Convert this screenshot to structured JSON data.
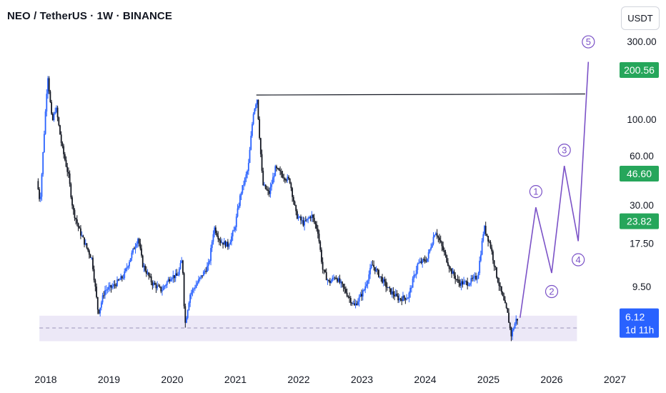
{
  "header": {
    "title": "NEO / TetherUS · 1W · BINANCE",
    "currency_button": "USDT"
  },
  "colors": {
    "up": "#2962ff",
    "down": "#131722",
    "wave": "#7b52c7",
    "zone": "#ece8f7",
    "green_badge": "#26a65b",
    "blue_badge": "#2962ff"
  },
  "chart_data": {
    "type": "candlestick",
    "interval": "1W",
    "scale": "log",
    "y_ticks": [
      "300.00",
      "100.00",
      "60.00",
      "30.00",
      "17.50",
      "9.50"
    ],
    "y_ticks_values": [
      300,
      100,
      60,
      30,
      17.5,
      9.5
    ],
    "x_ticks": [
      "2018",
      "2019",
      "2020",
      "2021",
      "2022",
      "2023",
      "2024",
      "2025",
      "2026",
      "2027"
    ],
    "price_badges": [
      {
        "label": "200.56",
        "value": 200.56,
        "kind": "green"
      },
      {
        "label": "46.60",
        "value": 46.6,
        "kind": "green"
      },
      {
        "label": "23.82",
        "value": 23.82,
        "kind": "green"
      }
    ],
    "last_price": {
      "label": "6.12",
      "value": 6.12,
      "countdown": "1d 11h"
    },
    "resistance_line": {
      "value": 141,
      "from": 2021.33,
      "to": 2026.53
    },
    "support_zone": {
      "top": 6.3,
      "bottom": 4.4,
      "mid": 5.3,
      "from": 2017.9,
      "to": 2026.4
    },
    "wave_projection": [
      {
        "label": "",
        "t": 2025.5,
        "v": 6.12
      },
      {
        "label": "1",
        "t": 2025.75,
        "v": 29
      },
      {
        "label": "2",
        "t": 2026.0,
        "v": 11.5
      },
      {
        "label": "3",
        "t": 2026.2,
        "v": 52
      },
      {
        "label": "4",
        "t": 2026.42,
        "v": 18
      },
      {
        "label": "5",
        "t": 2026.58,
        "v": 225
      }
    ],
    "price_anchors": [
      [
        2017.88,
        42
      ],
      [
        2017.93,
        31
      ],
      [
        2018.05,
        190
      ],
      [
        2018.12,
        95
      ],
      [
        2018.18,
        120
      ],
      [
        2018.27,
        70
      ],
      [
        2018.38,
        45
      ],
      [
        2018.45,
        28
      ],
      [
        2018.55,
        21
      ],
      [
        2018.65,
        17
      ],
      [
        2018.75,
        14
      ],
      [
        2018.85,
        6.5
      ],
      [
        2018.95,
        9
      ],
      [
        2019.08,
        9.5
      ],
      [
        2019.25,
        11
      ],
      [
        2019.35,
        14
      ],
      [
        2019.48,
        19
      ],
      [
        2019.55,
        13
      ],
      [
        2019.7,
        10
      ],
      [
        2019.85,
        9
      ],
      [
        2020.0,
        11
      ],
      [
        2020.1,
        11
      ],
      [
        2020.18,
        14
      ],
      [
        2020.22,
        5.5
      ],
      [
        2020.3,
        8.5
      ],
      [
        2020.45,
        10.5
      ],
      [
        2020.6,
        13
      ],
      [
        2020.68,
        22
      ],
      [
        2020.78,
        18
      ],
      [
        2020.9,
        17
      ],
      [
        2021.0,
        21
      ],
      [
        2021.1,
        35
      ],
      [
        2021.22,
        50
      ],
      [
        2021.3,
        110
      ],
      [
        2021.36,
        135
      ],
      [
        2021.45,
        40
      ],
      [
        2021.55,
        35
      ],
      [
        2021.65,
        50
      ],
      [
        2021.78,
        45
      ],
      [
        2021.88,
        42
      ],
      [
        2021.98,
        26
      ],
      [
        2022.1,
        23
      ],
      [
        2022.22,
        26
      ],
      [
        2022.32,
        21
      ],
      [
        2022.4,
        12
      ],
      [
        2022.5,
        10
      ],
      [
        2022.6,
        11
      ],
      [
        2022.75,
        9
      ],
      [
        2022.9,
        7.2
      ],
      [
        2023.05,
        9
      ],
      [
        2023.18,
        13
      ],
      [
        2023.3,
        11
      ],
      [
        2023.45,
        9
      ],
      [
        2023.6,
        8
      ],
      [
        2023.75,
        8.2
      ],
      [
        2023.9,
        13
      ],
      [
        2024.05,
        14
      ],
      [
        2024.18,
        21
      ],
      [
        2024.3,
        16
      ],
      [
        2024.42,
        12
      ],
      [
        2024.55,
        10
      ],
      [
        2024.7,
        10
      ],
      [
        2024.85,
        11
      ],
      [
        2024.95,
        22
      ],
      [
        2025.05,
        17
      ],
      [
        2025.15,
        11
      ],
      [
        2025.25,
        8
      ],
      [
        2025.32,
        6.5
      ],
      [
        2025.38,
        4.8
      ],
      [
        2025.46,
        6
      ]
    ]
  }
}
